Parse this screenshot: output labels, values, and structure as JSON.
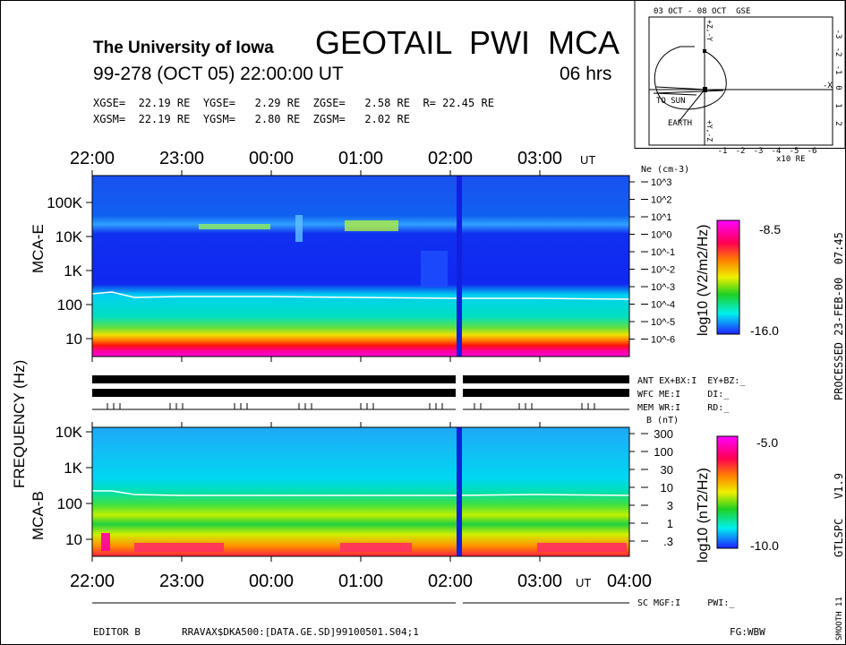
{
  "header": {
    "institution": "The University of Iowa",
    "title": "GEOTAIL  PWI  MCA",
    "date_line": "99-278 (OCT 05) 22:00:00 UT",
    "duration": "06 hrs",
    "gse_line": "XGSE=  22.19 RE  YGSE=   2.29 RE  ZGSE=   2.58 RE  R= 22.45 RE",
    "gsm_line": "XGSM=  22.19 RE  YGSM=   2.80 RE  ZGSM=   2.02 RE"
  },
  "orbit": {
    "title": "03 OCT - 08 OCT  GSE",
    "x_ticks": [
      "-1",
      "-2",
      "-3",
      "-4",
      "-5",
      "-6"
    ],
    "x_unit": "x10 RE",
    "y_ticks": [
      "-3",
      "-2",
      "-1",
      "0",
      "1",
      "2"
    ],
    "axis_x_label": "-X",
    "axis_up_label": "+Z,-Y",
    "axis_down_label": "+Y,-Z",
    "to_sun": "TO SUN",
    "earth": "EARTH"
  },
  "chart_data": [
    {
      "type": "heatmap",
      "title": "MCA-E",
      "xlabel": "UT",
      "ylabel": "FREQUENCY (Hz)",
      "x_ticks": [
        "22:00",
        "23:00",
        "00:00",
        "01:00",
        "02:00",
        "03:00"
      ],
      "x_unit": "UT",
      "y_ticks": [
        "100K",
        "10K",
        "1K",
        "100",
        "10"
      ],
      "y_scale": "log",
      "right_axis_label": "Ne (cm-3)",
      "right_ticks": [
        "10^3",
        "10^2",
        "10^1",
        "10^0",
        "10^-1",
        "10^-2",
        "10^-3",
        "10^-4",
        "10^-5",
        "10^-6"
      ],
      "colorbar": {
        "label": "log10 (V2/m2/Hz)",
        "max": "-8.5",
        "min": "-16.0"
      },
      "data_gap_ut": "02:05"
    },
    {
      "type": "heatmap",
      "title": "MCA-B",
      "xlabel": "UT",
      "ylabel": "FREQUENCY (Hz)",
      "x_ticks": [
        "22:00",
        "23:00",
        "00:00",
        "01:00",
        "02:00",
        "03:00",
        "04:00"
      ],
      "x_unit": "UT",
      "y_ticks": [
        "10K",
        "1K",
        "100",
        "10"
      ],
      "y_scale": "log",
      "right_axis_label": "B (nT)",
      "right_ticks": [
        "300",
        "100",
        "30",
        "10",
        "3",
        "1",
        ".3"
      ],
      "colorbar": {
        "label": "log10 (nT2/Hz)",
        "max": "-5.0",
        "min": "-10.0"
      },
      "data_gap_ut": "02:05"
    }
  ],
  "status": {
    "ant": "ANT EX+BX:I  EY+BZ:_",
    "wfc": "WFC ME:I     DI:_",
    "mem": "MEM WR:I     RD:_",
    "sc": "SC MGF:I     PWI:_"
  },
  "side": {
    "processed": "PROCESSED 23-FEB-00  07:45",
    "version": "GTLSPC   V1.9",
    "smooth": "SMOOTH 11"
  },
  "footer": {
    "editor": "EDITOR B",
    "file": "RRAVAX$DKA500:[DATA.GE.SD]99100501.S04;1",
    "fg": "FG:WBW"
  },
  "frequency_label": "FREQUENCY (Hz)"
}
